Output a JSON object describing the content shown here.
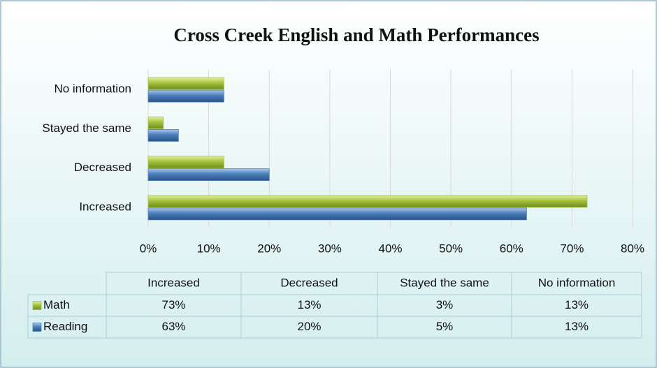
{
  "chart_data": {
    "type": "bar",
    "orientation": "horizontal",
    "title": "Cross Creek English and Math Performances",
    "categories": [
      "Increased",
      "Decreased",
      "Stayed the same",
      "No information"
    ],
    "series": [
      {
        "name": "Math",
        "color": "#a4c23b",
        "values": [
          72.5,
          12.5,
          2.5,
          12.5
        ],
        "value_labels": [
          "73%",
          "13%",
          "3%",
          "13%"
        ]
      },
      {
        "name": "Reading",
        "color": "#4a7ebb",
        "values": [
          62.5,
          20,
          5,
          12.5
        ],
        "value_labels": [
          "63%",
          "20%",
          "5%",
          "13%"
        ]
      }
    ],
    "xlim": [
      0,
      80
    ],
    "xticks": [
      {
        "value": 0,
        "label": "0%"
      },
      {
        "value": 10,
        "label": "10%"
      },
      {
        "value": 20,
        "label": "20%"
      },
      {
        "value": 30,
        "label": "30%"
      },
      {
        "value": 40,
        "label": "40%"
      },
      {
        "value": 50,
        "label": "50%"
      },
      {
        "value": 60,
        "label": "60%"
      },
      {
        "value": 70,
        "label": "70%"
      },
      {
        "value": 80,
        "label": "80%"
      }
    ],
    "grid": true,
    "legend": "table"
  }
}
